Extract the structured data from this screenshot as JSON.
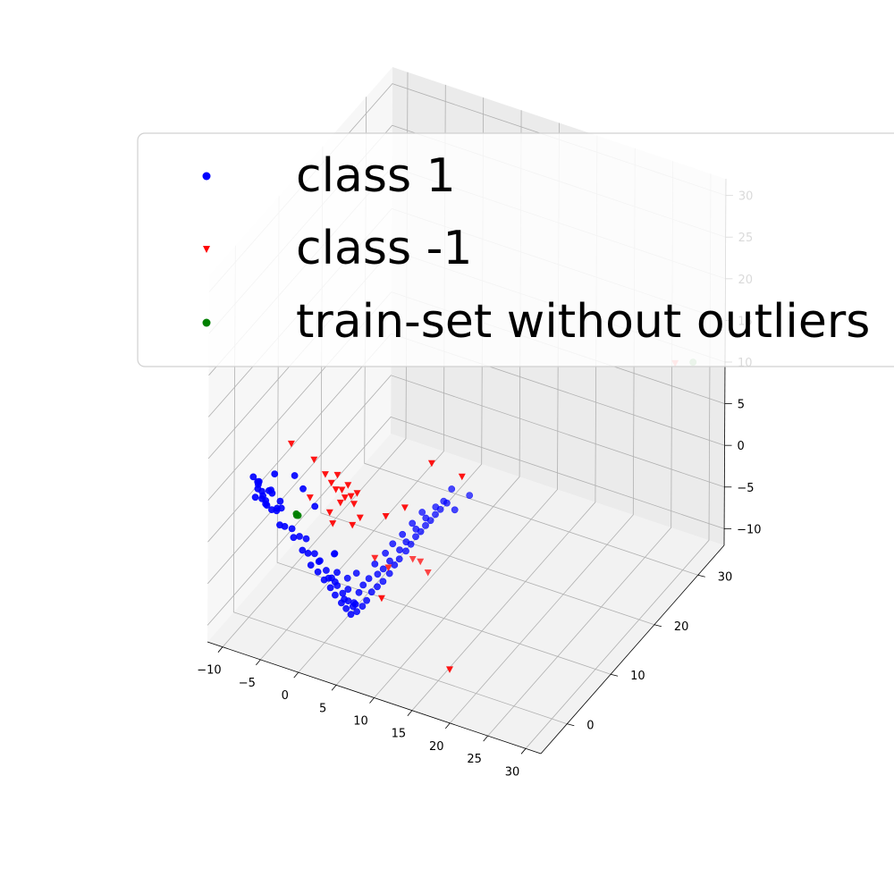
{
  "chart_data": {
    "type": "scatter",
    "projection": "3d",
    "title": "",
    "xlabel": "",
    "ylabel": "",
    "zlabel": "",
    "xlim": [
      -12,
      32
    ],
    "ylim": [
      -6,
      36
    ],
    "zlim": [
      -12,
      32
    ],
    "xticks": [
      "−10",
      "−5",
      "0",
      "5",
      "10",
      "15",
      "20",
      "25",
      "30"
    ],
    "yticks": [
      "0",
      "10",
      "20",
      "30"
    ],
    "zticks": [
      "−10",
      "−5",
      "0",
      "5",
      "10",
      "15",
      "20",
      "25",
      "30"
    ],
    "grid": true,
    "legend_position": "top",
    "colors": {
      "class1": "#0000ff",
      "class_neg1": "#ff0000",
      "train": "#008000"
    },
    "series": [
      {
        "name": "class 1",
        "marker": "circle",
        "color": "#0000ff",
        "points": [
          [
            -9.5,
            0,
            5
          ],
          [
            -9.2,
            0.5,
            4.2
          ],
          [
            -9.0,
            0.2,
            3.6
          ],
          [
            -8.8,
            0.8,
            3.0
          ],
          [
            -8.5,
            0.3,
            2.5
          ],
          [
            -9.3,
            1.0,
            3.9
          ],
          [
            -8.9,
            1.2,
            2.2
          ],
          [
            -8.6,
            -0.4,
            4.6
          ],
          [
            -8.2,
            0.6,
            1.8
          ],
          [
            -8.0,
            1.0,
            3.2
          ],
          [
            -8.7,
            1.5,
            1.5
          ],
          [
            -9.1,
            -0.2,
            2.8
          ],
          [
            -7.8,
            0.2,
            2.0
          ],
          [
            -7.5,
            0.8,
            1.2
          ],
          [
            -8.3,
            2.0,
            2.6
          ],
          [
            -7.2,
            1.4,
            0.8
          ],
          [
            -8.4,
            -0.8,
            5.2
          ],
          [
            -7.0,
            0.0,
            3.8
          ],
          [
            -6.5,
            1.0,
            2.4
          ],
          [
            -7.6,
            2.2,
            0.5
          ],
          [
            -6.8,
            1.8,
            1.0
          ],
          [
            -6.2,
            0.4,
            0.0
          ],
          [
            -6.0,
            1.2,
            -0.6
          ],
          [
            -5.5,
            2.0,
            -1.2
          ],
          [
            -5.0,
            1.5,
            -1.8
          ],
          [
            -4.8,
            2.5,
            -2.2
          ],
          [
            -4.5,
            0.8,
            6.2
          ],
          [
            -6.4,
            -0.5,
            6.6
          ],
          [
            -3.5,
            1.0,
            4.8
          ],
          [
            -2.5,
            2.0,
            2.4
          ],
          [
            -4.2,
            3.0,
            -2.6
          ],
          [
            -4.0,
            1.8,
            -3.2
          ],
          [
            -3.6,
            2.4,
            -3.8
          ],
          [
            -3.2,
            3.2,
            -4.2
          ],
          [
            -3.0,
            2.0,
            -4.8
          ],
          [
            -2.8,
            3.5,
            -5.2
          ],
          [
            -2.4,
            2.6,
            -5.8
          ],
          [
            -2.0,
            3.8,
            -6.2
          ],
          [
            -1.8,
            3.0,
            -6.8
          ],
          [
            -1.5,
            4.2,
            -7.2
          ],
          [
            -1.2,
            3.4,
            -7.8
          ],
          [
            -1.0,
            4.6,
            -8.2
          ],
          [
            -0.8,
            3.8,
            -8.8
          ],
          [
            -0.5,
            5.0,
            -9.2
          ],
          [
            -0.2,
            4.2,
            -9.8
          ],
          [
            0.0,
            5.4,
            -10.2
          ],
          [
            0.2,
            4.6,
            -10.6
          ],
          [
            0.4,
            5.8,
            -11.0
          ],
          [
            -0.4,
            5.2,
            -10.0
          ],
          [
            0.6,
            5.0,
            -11.4
          ],
          [
            -1.4,
            4.8,
            -8.0
          ],
          [
            -1.8,
            4.0,
            -7.2
          ],
          [
            -2.6,
            3.4,
            -5.0
          ],
          [
            0.8,
            6.0,
            -11.6
          ],
          [
            0.3,
            6.2,
            -10.8
          ],
          [
            -0.6,
            6.4,
            -9.6
          ],
          [
            0.9,
            5.5,
            -10.4
          ],
          [
            -1.6,
            5.6,
            -7.4
          ],
          [
            1.2,
            6.6,
            -11.2
          ],
          [
            0.5,
            7.0,
            -10.0
          ],
          [
            -0.9,
            6.8,
            -8.6
          ],
          [
            1.4,
            7.2,
            -10.8
          ],
          [
            0.7,
            7.6,
            -9.4
          ],
          [
            -0.3,
            7.8,
            -8.4
          ],
          [
            1.6,
            8.0,
            -10.2
          ],
          [
            1.0,
            8.4,
            -9.0
          ],
          [
            2.0,
            8.6,
            -9.8
          ],
          [
            1.8,
            9.0,
            -8.6
          ],
          [
            2.4,
            9.2,
            -9.4
          ],
          [
            2.2,
            9.6,
            -8.2
          ],
          [
            1.2,
            9.4,
            -7.8
          ],
          [
            2.8,
            10.0,
            -8.8
          ],
          [
            2.6,
            10.4,
            -7.6
          ],
          [
            3.0,
            10.8,
            -8.2
          ],
          [
            1.9,
            10.6,
            -7.0
          ],
          [
            3.4,
            11.2,
            -7.6
          ],
          [
            3.2,
            11.6,
            -6.8
          ],
          [
            2.4,
            11.4,
            -6.2
          ],
          [
            3.8,
            12.0,
            -7.0
          ],
          [
            3.6,
            12.4,
            -6.2
          ],
          [
            4.0,
            12.8,
            -6.6
          ],
          [
            3.0,
            12.6,
            -5.6
          ],
          [
            4.4,
            13.2,
            -5.8
          ],
          [
            4.2,
            13.6,
            -5.2
          ],
          [
            4.6,
            14.0,
            -5.6
          ],
          [
            3.6,
            13.8,
            -4.8
          ],
          [
            5.0,
            14.4,
            -5.0
          ],
          [
            4.8,
            14.8,
            -4.4
          ],
          [
            5.2,
            15.2,
            -4.8
          ],
          [
            4.2,
            15.0,
            -4.0
          ],
          [
            5.6,
            15.6,
            -4.2
          ],
          [
            5.4,
            16.0,
            -3.6
          ],
          [
            5.8,
            16.4,
            -4.0
          ],
          [
            6.0,
            16.8,
            -3.2
          ],
          [
            6.2,
            17.2,
            -3.6
          ],
          [
            8.5,
            15.0,
            -2.4
          ],
          [
            9.0,
            17.5,
            -2.0
          ],
          [
            7.5,
            16.0,
            -0.8
          ],
          [
            -1.0,
            4.0,
            -4.0
          ],
          [
            -2.2,
            6.0,
            -5.6
          ]
        ]
      },
      {
        "name": "class -1",
        "marker": "triangle_down",
        "color": "#ff0000",
        "points": [
          [
            -4.5,
            0,
            10.5
          ],
          [
            -1.5,
            0,
            9.5
          ],
          [
            0.0,
            0,
            8.2
          ],
          [
            0.8,
            0,
            7.4
          ],
          [
            1.6,
            0,
            8.6
          ],
          [
            2.2,
            0,
            7.0
          ],
          [
            2.6,
            0,
            6.2
          ],
          [
            3.0,
            0,
            7.8
          ],
          [
            3.4,
            0,
            6.6
          ],
          [
            2.0,
            0,
            5.4
          ],
          [
            1.4,
            0,
            6.8
          ],
          [
            3.8,
            0,
            5.8
          ],
          [
            4.2,
            0,
            7.2
          ],
          [
            -2.0,
            0,
            4.8
          ],
          [
            0.6,
            0,
            3.8
          ],
          [
            1.0,
            0,
            2.6
          ],
          [
            3.6,
            0,
            3.2
          ],
          [
            4.6,
            0,
            4.4
          ],
          [
            8.0,
            0,
            5.6
          ],
          [
            10.5,
            0,
            7.4
          ],
          [
            14.0,
            0,
            13.8
          ],
          [
            18.0,
            0,
            13.4
          ],
          [
            7.5,
            0,
            -4.4
          ],
          [
            16.5,
            0,
            -10.2
          ],
          [
            2.0,
            8.0,
            -6.0
          ],
          [
            3.5,
            8.5,
            -7.0
          ],
          [
            3.0,
            15.0,
            -10.0
          ],
          [
            4.0,
            15.0,
            -10.0
          ],
          [
            5.0,
            15.0,
            -11.0
          ],
          [
            30.0,
            28.0,
            14.0
          ]
        ]
      },
      {
        "name": "train-set without outliers",
        "marker": "circle",
        "color": "#008000",
        "points": [
          [
            -3.8,
            0.0,
            2.3
          ],
          [
            -3.6,
            0.1,
            2.1
          ],
          [
            -3.7,
            -0.1,
            2.2
          ],
          [
            29.5,
            33.0,
            11.0
          ]
        ]
      }
    ]
  }
}
